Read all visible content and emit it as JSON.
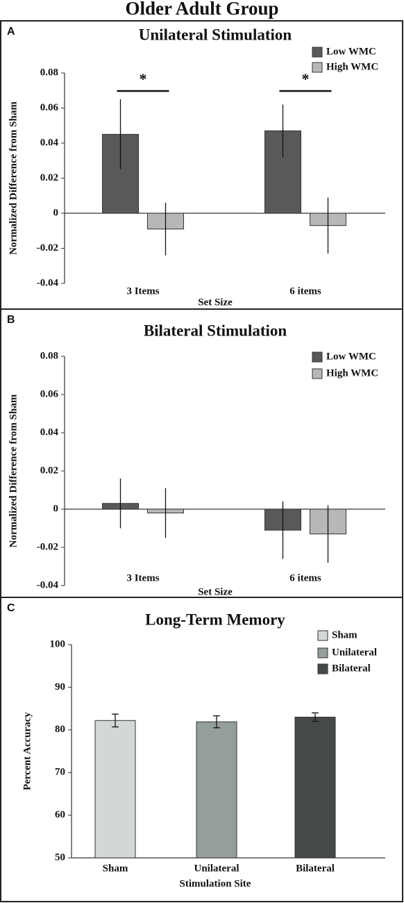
{
  "title": "Older Adult Group",
  "chart_data": [
    {
      "type": "bar",
      "panel_label": "A",
      "title": "Unilateral Stimulation",
      "y_label": "Normalized Difference from Sham",
      "x_label": "Set Size",
      "categories": [
        "3 Items",
        "6 items"
      ],
      "series": [
        {
          "name": "Low WMC",
          "color": "#595959",
          "values": [
            0.045,
            0.047
          ],
          "errors": [
            0.02,
            0.015
          ]
        },
        {
          "name": "High WMC",
          "color": "#b5b8b7",
          "values": [
            -0.009,
            -0.007
          ],
          "errors": [
            0.015,
            0.016
          ]
        }
      ],
      "annotations": [
        "*",
        "*"
      ],
      "ylim": [
        -0.04,
        0.08
      ],
      "yticks": [
        -0.04,
        -0.02,
        0,
        0.02,
        0.04,
        0.06,
        0.08
      ],
      "grid": false,
      "legend": "upper right"
    },
    {
      "type": "bar",
      "panel_label": "B",
      "title": "Bilateral Stimulation",
      "y_label": "Normalized Difference from Sham",
      "x_label": "Set Size",
      "categories": [
        "3 Items",
        "6 items"
      ],
      "series": [
        {
          "name": "Low WMC",
          "color": "#595959",
          "values": [
            0.003,
            -0.011
          ],
          "errors": [
            0.013,
            0.015
          ]
        },
        {
          "name": "High WMC",
          "color": "#b5b8b7",
          "values": [
            -0.002,
            -0.013
          ],
          "errors": [
            0.013,
            0.015
          ]
        }
      ],
      "ylim": [
        -0.04,
        0.08
      ],
      "yticks": [
        -0.04,
        -0.02,
        0,
        0.02,
        0.04,
        0.06,
        0.08
      ],
      "grid": false,
      "legend": "upper right"
    },
    {
      "type": "bar",
      "panel_label": "C",
      "title": "Long-Term Memory",
      "y_label": "Percent Accuracy",
      "x_label": "Stimulation Site",
      "categories": [
        "Sham",
        "Unilateral",
        "Bilateral"
      ],
      "values": [
        82.2,
        81.9,
        83.0
      ],
      "errors": [
        1.5,
        1.4,
        1.0
      ],
      "colors": [
        "#d3d7d7",
        "#949e9b",
        "#444a4a"
      ],
      "ylim": [
        50,
        100
      ],
      "yticks": [
        50,
        60,
        70,
        80,
        90,
        100
      ],
      "grid": false,
      "legend": "upper right"
    }
  ]
}
